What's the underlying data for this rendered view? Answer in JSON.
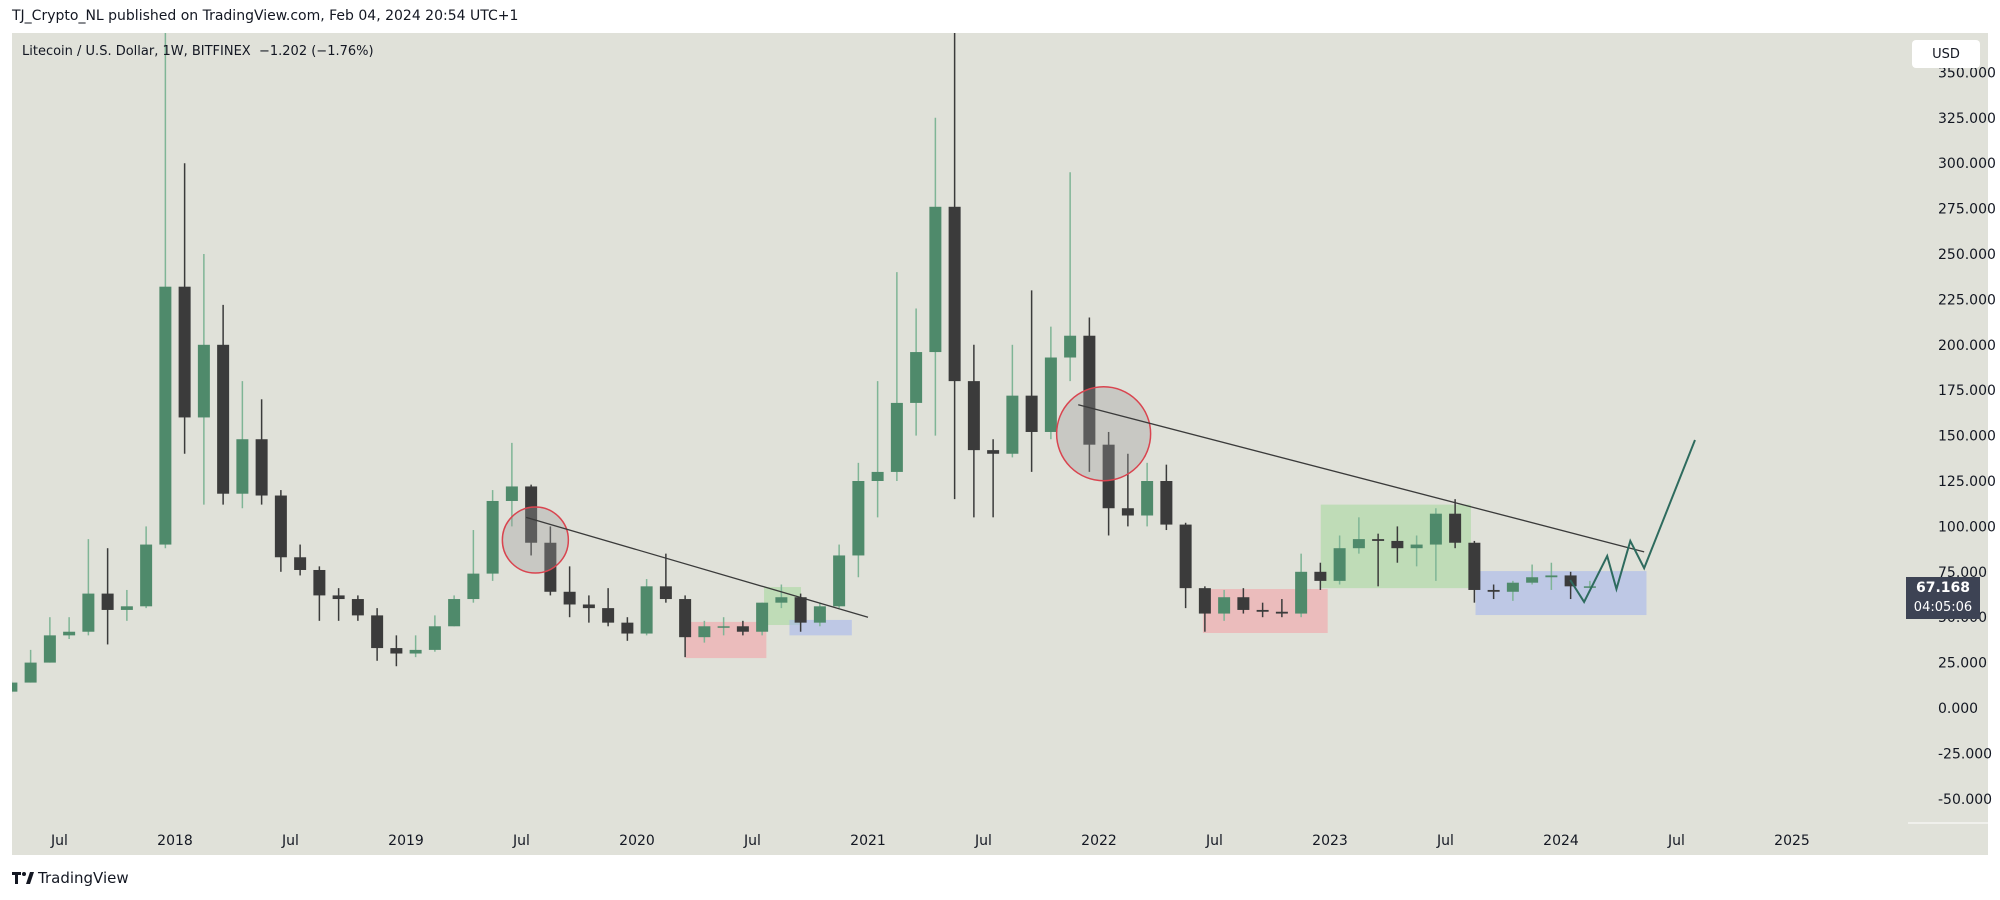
{
  "header": {
    "published": "TJ_Crypto_NL published on TradingView.com, Feb 04, 2024 20:54 UTC+1"
  },
  "legend": {
    "symbol": "Litecoin / U.S. Dollar, 1W, BITFINEX",
    "change": "−1.202 (−1.76%)"
  },
  "currency_button": "USD",
  "last_price": {
    "value": "67.168",
    "countdown": "04:05:06",
    "bg": "#3d4354"
  },
  "footer": {
    "logo_text": "TradingView",
    "logo_icon": "tradingview-logo-icon"
  },
  "colors": {
    "background": "#e0e1d9",
    "bull": "#4f8a6b",
    "bear": "#3b3b3b",
    "projection": "#2e6b5e",
    "trendline": "#3a3a3a"
  },
  "chart_data": {
    "type": "candlestick",
    "interval_shown": "1W",
    "ylim": [
      -60,
      372
    ],
    "xlim": [
      "2017-04",
      "2025-08"
    ],
    "y_ticks": [
      "-50.000",
      "-25.000",
      "0.000",
      "25.000",
      "50.000",
      "75.000",
      "100.000",
      "125.000",
      "150.000",
      "175.000",
      "200.000",
      "225.000",
      "250.000",
      "275.000",
      "300.000",
      "325.000",
      "350.000"
    ],
    "y_tick_values": [
      -50,
      -25,
      0,
      25,
      50,
      75,
      100,
      125,
      150,
      175,
      200,
      225,
      250,
      275,
      300,
      325,
      350
    ],
    "x_ticks": [
      {
        "label": "Jul",
        "t": 2017.5
      },
      {
        "label": "2018",
        "t": 2018
      },
      {
        "label": "Jul",
        "t": 2018.5
      },
      {
        "label": "2019",
        "t": 2019
      },
      {
        "label": "Jul",
        "t": 2019.5
      },
      {
        "label": "2020",
        "t": 2020
      },
      {
        "label": "Jul",
        "t": 2020.5
      },
      {
        "label": "2021",
        "t": 2021
      },
      {
        "label": "Jul",
        "t": 2021.5
      },
      {
        "label": "2022",
        "t": 2022
      },
      {
        "label": "Jul",
        "t": 2022.5
      },
      {
        "label": "2023",
        "t": 2023
      },
      {
        "label": "Jul",
        "t": 2023.5
      },
      {
        "label": "2024",
        "t": 2024
      },
      {
        "label": "Jul",
        "t": 2024.5
      },
      {
        "label": "2025",
        "t": 2025
      }
    ],
    "candles_ohlc": [
      [
        "2017-04",
        9,
        15,
        8,
        14
      ],
      [
        "2017-05",
        14,
        32,
        14,
        25
      ],
      [
        "2017-06",
        25,
        50,
        25,
        40
      ],
      [
        "2017-07",
        40,
        50,
        38,
        42
      ],
      [
        "2017-08",
        42,
        93,
        40,
        63
      ],
      [
        "2017-09",
        63,
        88,
        35,
        54
      ],
      [
        "2017-10",
        54,
        65,
        48,
        56
      ],
      [
        "2017-11",
        56,
        100,
        55,
        90
      ],
      [
        "2017-12",
        90,
        375,
        88,
        232
      ],
      [
        "2018-01",
        232,
        300,
        140,
        160
      ],
      [
        "2018-02",
        160,
        250,
        112,
        200
      ],
      [
        "2018-03",
        200,
        222,
        112,
        118
      ],
      [
        "2018-04",
        118,
        180,
        110,
        148
      ],
      [
        "2018-05",
        148,
        170,
        112,
        117
      ],
      [
        "2018-06",
        117,
        120,
        75,
        83
      ],
      [
        "2018-07",
        83,
        90,
        73,
        76
      ],
      [
        "2018-08",
        76,
        78,
        48,
        62
      ],
      [
        "2018-09",
        62,
        66,
        48,
        60
      ],
      [
        "2018-10",
        60,
        62,
        48,
        51
      ],
      [
        "2018-11",
        51,
        55,
        26,
        33
      ],
      [
        "2018-12",
        33,
        40,
        23,
        30
      ],
      [
        "2019-01",
        30,
        40,
        28,
        32
      ],
      [
        "2019-02",
        32,
        51,
        31,
        45
      ],
      [
        "2019-03",
        45,
        62,
        45,
        60
      ],
      [
        "2019-04",
        60,
        98,
        58,
        74
      ],
      [
        "2019-05",
        74,
        120,
        70,
        114
      ],
      [
        "2019-06",
        114,
        146,
        100,
        122
      ],
      [
        "2019-07",
        122,
        123,
        84,
        91
      ],
      [
        "2019-08",
        91,
        100,
        62,
        64
      ],
      [
        "2019-09",
        64,
        78,
        50,
        57
      ],
      [
        "2019-10",
        57,
        62,
        47,
        55
      ],
      [
        "2019-11",
        55,
        66,
        45,
        47
      ],
      [
        "2019-12",
        47,
        50,
        37,
        41
      ],
      [
        "2020-01",
        41,
        71,
        40,
        67
      ],
      [
        "2020-02",
        67,
        85,
        58,
        60
      ],
      [
        "2020-03",
        60,
        62,
        28,
        39
      ],
      [
        "2020-04",
        39,
        48,
        36,
        45
      ],
      [
        "2020-05",
        45,
        50,
        40,
        45
      ],
      [
        "2020-06",
        45,
        48,
        40,
        42
      ],
      [
        "2020-07",
        42,
        58,
        40,
        58
      ],
      [
        "2020-08",
        58,
        68,
        55,
        61
      ],
      [
        "2020-09",
        61,
        63,
        42,
        47
      ],
      [
        "2020-10",
        47,
        58,
        45,
        56
      ],
      [
        "2020-11",
        56,
        90,
        55,
        84
      ],
      [
        "2020-12",
        84,
        135,
        72,
        125
      ],
      [
        "2021-01",
        125,
        180,
        105,
        130
      ],
      [
        "2021-02",
        130,
        240,
        125,
        168
      ],
      [
        "2021-03",
        168,
        220,
        150,
        196
      ],
      [
        "2021-04",
        196,
        325,
        150,
        276
      ],
      [
        "2021-05",
        276,
        412,
        115,
        180
      ],
      [
        "2021-06",
        180,
        200,
        105,
        142
      ],
      [
        "2021-07",
        142,
        148,
        105,
        140
      ],
      [
        "2021-08",
        140,
        200,
        138,
        172
      ],
      [
        "2021-09",
        172,
        230,
        130,
        152
      ],
      [
        "2021-10",
        152,
        210,
        148,
        193
      ],
      [
        "2021-11",
        193,
        295,
        180,
        205
      ],
      [
        "2021-12",
        205,
        215,
        130,
        145
      ],
      [
        "2022-01",
        145,
        152,
        95,
        110
      ],
      [
        "2022-02",
        110,
        140,
        100,
        106
      ],
      [
        "2022-03",
        106,
        135,
        100,
        125
      ],
      [
        "2022-04",
        125,
        134,
        98,
        101
      ],
      [
        "2022-05",
        101,
        102,
        55,
        66
      ],
      [
        "2022-06",
        66,
        67,
        42,
        52
      ],
      [
        "2022-07",
        52,
        65,
        48,
        61
      ],
      [
        "2022-08",
        61,
        66,
        52,
        54
      ],
      [
        "2022-09",
        54,
        58,
        50,
        53
      ],
      [
        "2022-10",
        53,
        60,
        50,
        52
      ],
      [
        "2022-11",
        52,
        85,
        50,
        75
      ],
      [
        "2022-12",
        75,
        80,
        65,
        70
      ],
      [
        "2023-01",
        70,
        95,
        68,
        88
      ],
      [
        "2023-02",
        88,
        105,
        85,
        93
      ],
      [
        "2023-03",
        93,
        96,
        67,
        92
      ],
      [
        "2023-04",
        92,
        100,
        80,
        88
      ],
      [
        "2023-05",
        88,
        95,
        78,
        90
      ],
      [
        "2023-06",
        90,
        110,
        70,
        107
      ],
      [
        "2023-07",
        107,
        115,
        88,
        91
      ],
      [
        "2023-08",
        91,
        92,
        58,
        65
      ],
      [
        "2023-09",
        65,
        68,
        60,
        64
      ],
      [
        "2023-10",
        64,
        70,
        59,
        69
      ],
      [
        "2023-11",
        69,
        79,
        68,
        72
      ],
      [
        "2023-12",
        72,
        80,
        65,
        73
      ],
      [
        "2024-01",
        73,
        75,
        60,
        67
      ],
      [
        "2024-02",
        67,
        70,
        66,
        67
      ]
    ],
    "drawings": {
      "trendlines": [
        {
          "from": [
            2019.52,
            105
          ],
          "to": [
            2021.0,
            50
          ]
        },
        {
          "from": [
            2021.91,
            167
          ],
          "to": [
            2024.36,
            86
          ]
        }
      ],
      "circles": [
        {
          "center": [
            2019.56,
            92.5
          ],
          "color": "#d9444f"
        },
        {
          "center": [
            2022.02,
            151
          ],
          "color": "#d9444f"
        }
      ],
      "boxes": [
        {
          "t": [
            2020.21,
            2020.56
          ],
          "p": [
            27.5,
            47.4
          ],
          "color": "#f2a3a8"
        },
        {
          "t": [
            2020.55,
            2020.71
          ],
          "p": [
            45.7,
            66.6
          ],
          "color": "#a8d8a0"
        },
        {
          "t": [
            2020.66,
            2020.93
          ],
          "p": [
            40,
            48.5
          ],
          "color": "#a6b8ec"
        },
        {
          "t": [
            2022.45,
            2022.99
          ],
          "p": [
            41.3,
            65.5
          ],
          "color": "#f2a3a8"
        },
        {
          "t": [
            2022.96,
            2023.61
          ],
          "p": [
            66,
            112
          ],
          "color": "#a8d8a0"
        },
        {
          "t": [
            2023.63,
            2024.37
          ],
          "p": [
            51.2,
            75.4
          ],
          "color": "#a6b8ec"
        }
      ],
      "projection_path": [
        [
          2024.04,
          70.5
        ],
        [
          2024.1,
          58.4
        ],
        [
          2024.2,
          83.7
        ],
        [
          2024.24,
          65.5
        ],
        [
          2024.3,
          92
        ],
        [
          2024.36,
          77
        ],
        [
          2024.58,
          147.6
        ]
      ]
    }
  }
}
